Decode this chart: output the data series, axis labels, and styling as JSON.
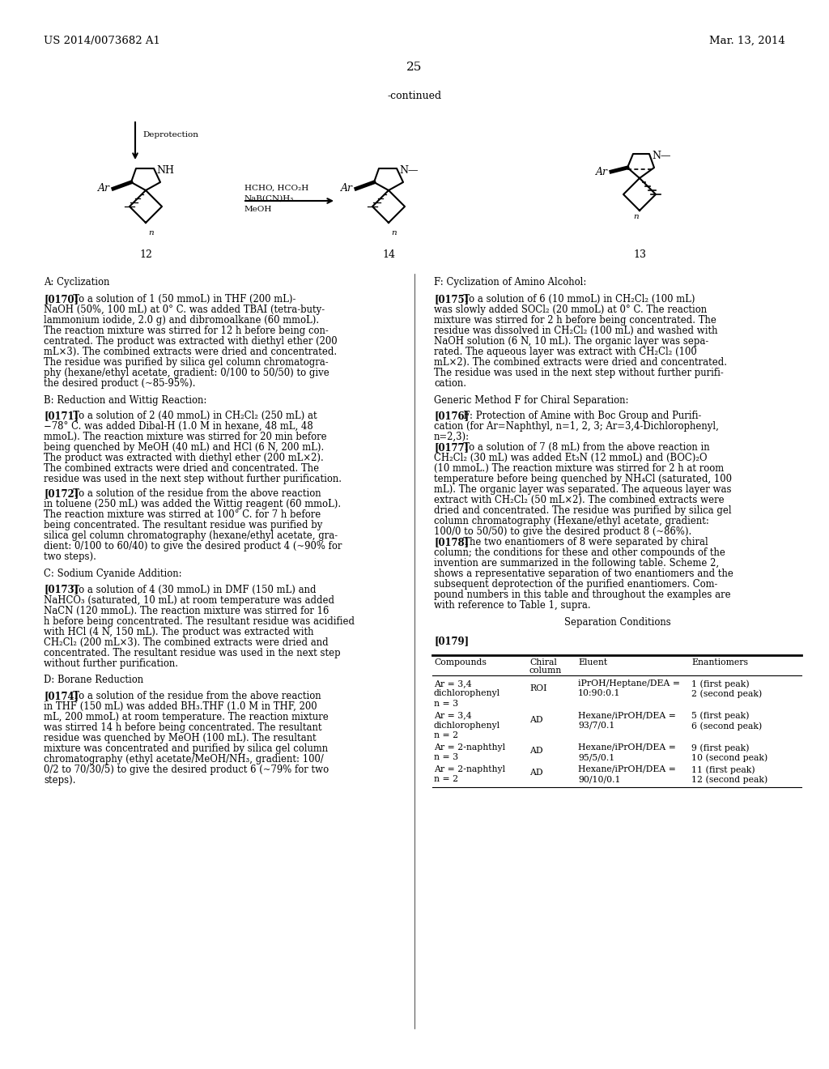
{
  "background_color": "#ffffff",
  "header_left": "US 2014/0073682 A1",
  "header_right": "Mar. 13, 2014",
  "page_number": "25",
  "continued_label": "-continued",
  "deprotection_label": "Deprotection",
  "compound_12": "12",
  "compound_14": "14",
  "compound_13": "13",
  "para_0170_lines": [
    "[0170]   To a solution of 1 (50 mmoL) in THF (200 mL)-",
    "NaOH (50%, 100 mL) at 0° C. was added TBAI (tetra-buty-",
    "lammonium iodide, 2.0 g) and dibromoalkane (60 mmoL).",
    "The reaction mixture was stirred for 12 h before being con-",
    "centrated. The product was extracted with diethyl ether (200",
    "mL×3). The combined extracts were dried and concentrated.",
    "The residue was purified by silica gel column chromatogra-",
    "phy (hexane/ethyl acetate, gradient: 0/100 to 50/50) to give",
    "the desired product (~85-95%)."
  ],
  "para_0171_lines": [
    "[0171]   To a solution of 2 (40 mmoL) in CH₂Cl₂ (250 mL) at",
    "−78° C. was added Dibal-H (1.0 M in hexane, 48 mL, 48",
    "mmoL). The reaction mixture was stirred for 20 min before",
    "being quenched by MeOH (40 mL) and HCl (6 N, 200 mL).",
    "The product was extracted with diethyl ether (200 mL×2).",
    "The combined extracts were dried and concentrated. The",
    "residue was used in the next step without further purification."
  ],
  "para_0172_lines": [
    "[0172]   To a solution of the residue from the above reaction",
    "in toluene (250 mL) was added the Wittig reagent (60 mmoL).",
    "The reaction mixture was stirred at 100° C. for 7 h before",
    "being concentrated. The resultant residue was purified by",
    "silica gel column chromatography (hexane/ethyl acetate, gra-",
    "dient: 0/100 to 60/40) to give the desired product 4 (~90% for",
    "two steps)."
  ],
  "para_0173_lines": [
    "[0173]   To a solution of 4 (30 mmoL) in DMF (150 mL) and",
    "NaHCO₃ (saturated, 10 mL) at room temperature was added",
    "NaCN (120 mmoL). The reaction mixture was stirred for 16",
    "h before being concentrated. The resultant residue was acidified",
    "with HCl (4 N, 150 mL). The product was extracted with",
    "CH₂Cl₂ (200 mL×3). The combined extracts were dried and",
    "concentrated. The resultant residue was used in the next step",
    "without further purification."
  ],
  "para_0174_lines": [
    "[0174]   To a solution of the residue from the above reaction",
    "in THF (150 mL) was added BH₃.THF (1.0 M in THF, 200",
    "mL, 200 mmoL) at room temperature. The reaction mixture",
    "was stirred 14 h before being concentrated. The resultant",
    "residue was quenched by MeOH (100 mL). The resultant",
    "mixture was concentrated and purified by silica gel column",
    "chromatography (ethyl acetate/MeOH/NH₃, gradient: 100/",
    "0/2 to 70/30/5) to give the desired product 6 (~79% for two",
    "steps)."
  ],
  "para_0175_lines": [
    "[0175]   To a solution of 6 (10 mmoL) in CH₂Cl₂ (100 mL)",
    "was slowly added SOCl₂ (20 mmoL) at 0° C. The reaction",
    "mixture was stirred for 2 h before being concentrated. The",
    "residue was dissolved in CH₂Cl₂ (100 mL) and washed with",
    "NaOH solution (6 N, 10 mL). The organic layer was sepa-",
    "rated. The aqueous layer was extract with CH₂Cl₂ (100",
    "mL×2). The combined extracts were dried and concentrated.",
    "The residue was used in the next step without further purifi-",
    "cation."
  ],
  "para_0176_lines": [
    "[0176]   F: Protection of Amine with Boc Group and Purifi-",
    "cation (for Ar=Naphthyl, n=1, 2, 3; Ar=3,4-Dichlorophenyl,",
    "n=2,3):"
  ],
  "para_0177_lines": [
    "[0177]   To a solution of 7 (8 mL) from the above reaction in",
    "CH₂Cl₂ (30 mL) was added Et₃N (12 mmoL) and (BOC)₂O",
    "(10 mmoL.) The reaction mixture was stirred for 2 h at room",
    "temperature before being quenched by NH₄Cl (saturated, 100",
    "mL). The organic layer was separated. The aqueous layer was",
    "extract with CH₂Cl₂ (50 mL×2). The combined extracts were",
    "dried and concentrated. The residue was purified by silica gel",
    "column chromatography (Hexane/ethyl acetate, gradient:",
    "100/0 to 50/50) to give the desired product 8 (~86%)."
  ],
  "para_0178_lines": [
    "[0178]   The two enantiomers of 8 were separated by chiral",
    "column; the conditions for these and other compounds of the",
    "invention are summarized in the following table. Scheme 2,",
    "shows a representative separation of two enantiomers and the",
    "subsequent deprotection of the purified enantiomers. Com-",
    "pound numbers in this table and throughout the examples are",
    "with reference to Table 1, supra."
  ],
  "sep_conditions_title": "Separation Conditions",
  "para_0179_label": "[0179]",
  "table_rows": [
    [
      "Ar = 3,4",
      "dichlorophenyl",
      "n = 3",
      "ROI",
      "iPrOH/Heptane/DEA =",
      "10:90:0.1",
      "1 (first peak)",
      "2 (second peak)"
    ],
    [
      "Ar = 3,4",
      "dichlorophenyl",
      "n = 2",
      "AD",
      "Hexane/iPrOH/DEA =",
      "93/7/0.1",
      "5 (first peak)",
      "6 (second peak)"
    ],
    [
      "Ar = 2-naphthyl",
      "n = 3",
      "",
      "AD",
      "Hexane/iPrOH/DEA =",
      "95/5/0.1",
      "9 (first peak)",
      "10 (second peak)"
    ],
    [
      "Ar = 2-naphthyl",
      "n = 2",
      "",
      "AD",
      "Hexane/iPrOH/DEA =",
      "90/10/0.1",
      "11 (first peak)",
      "12 (second peak)"
    ]
  ]
}
